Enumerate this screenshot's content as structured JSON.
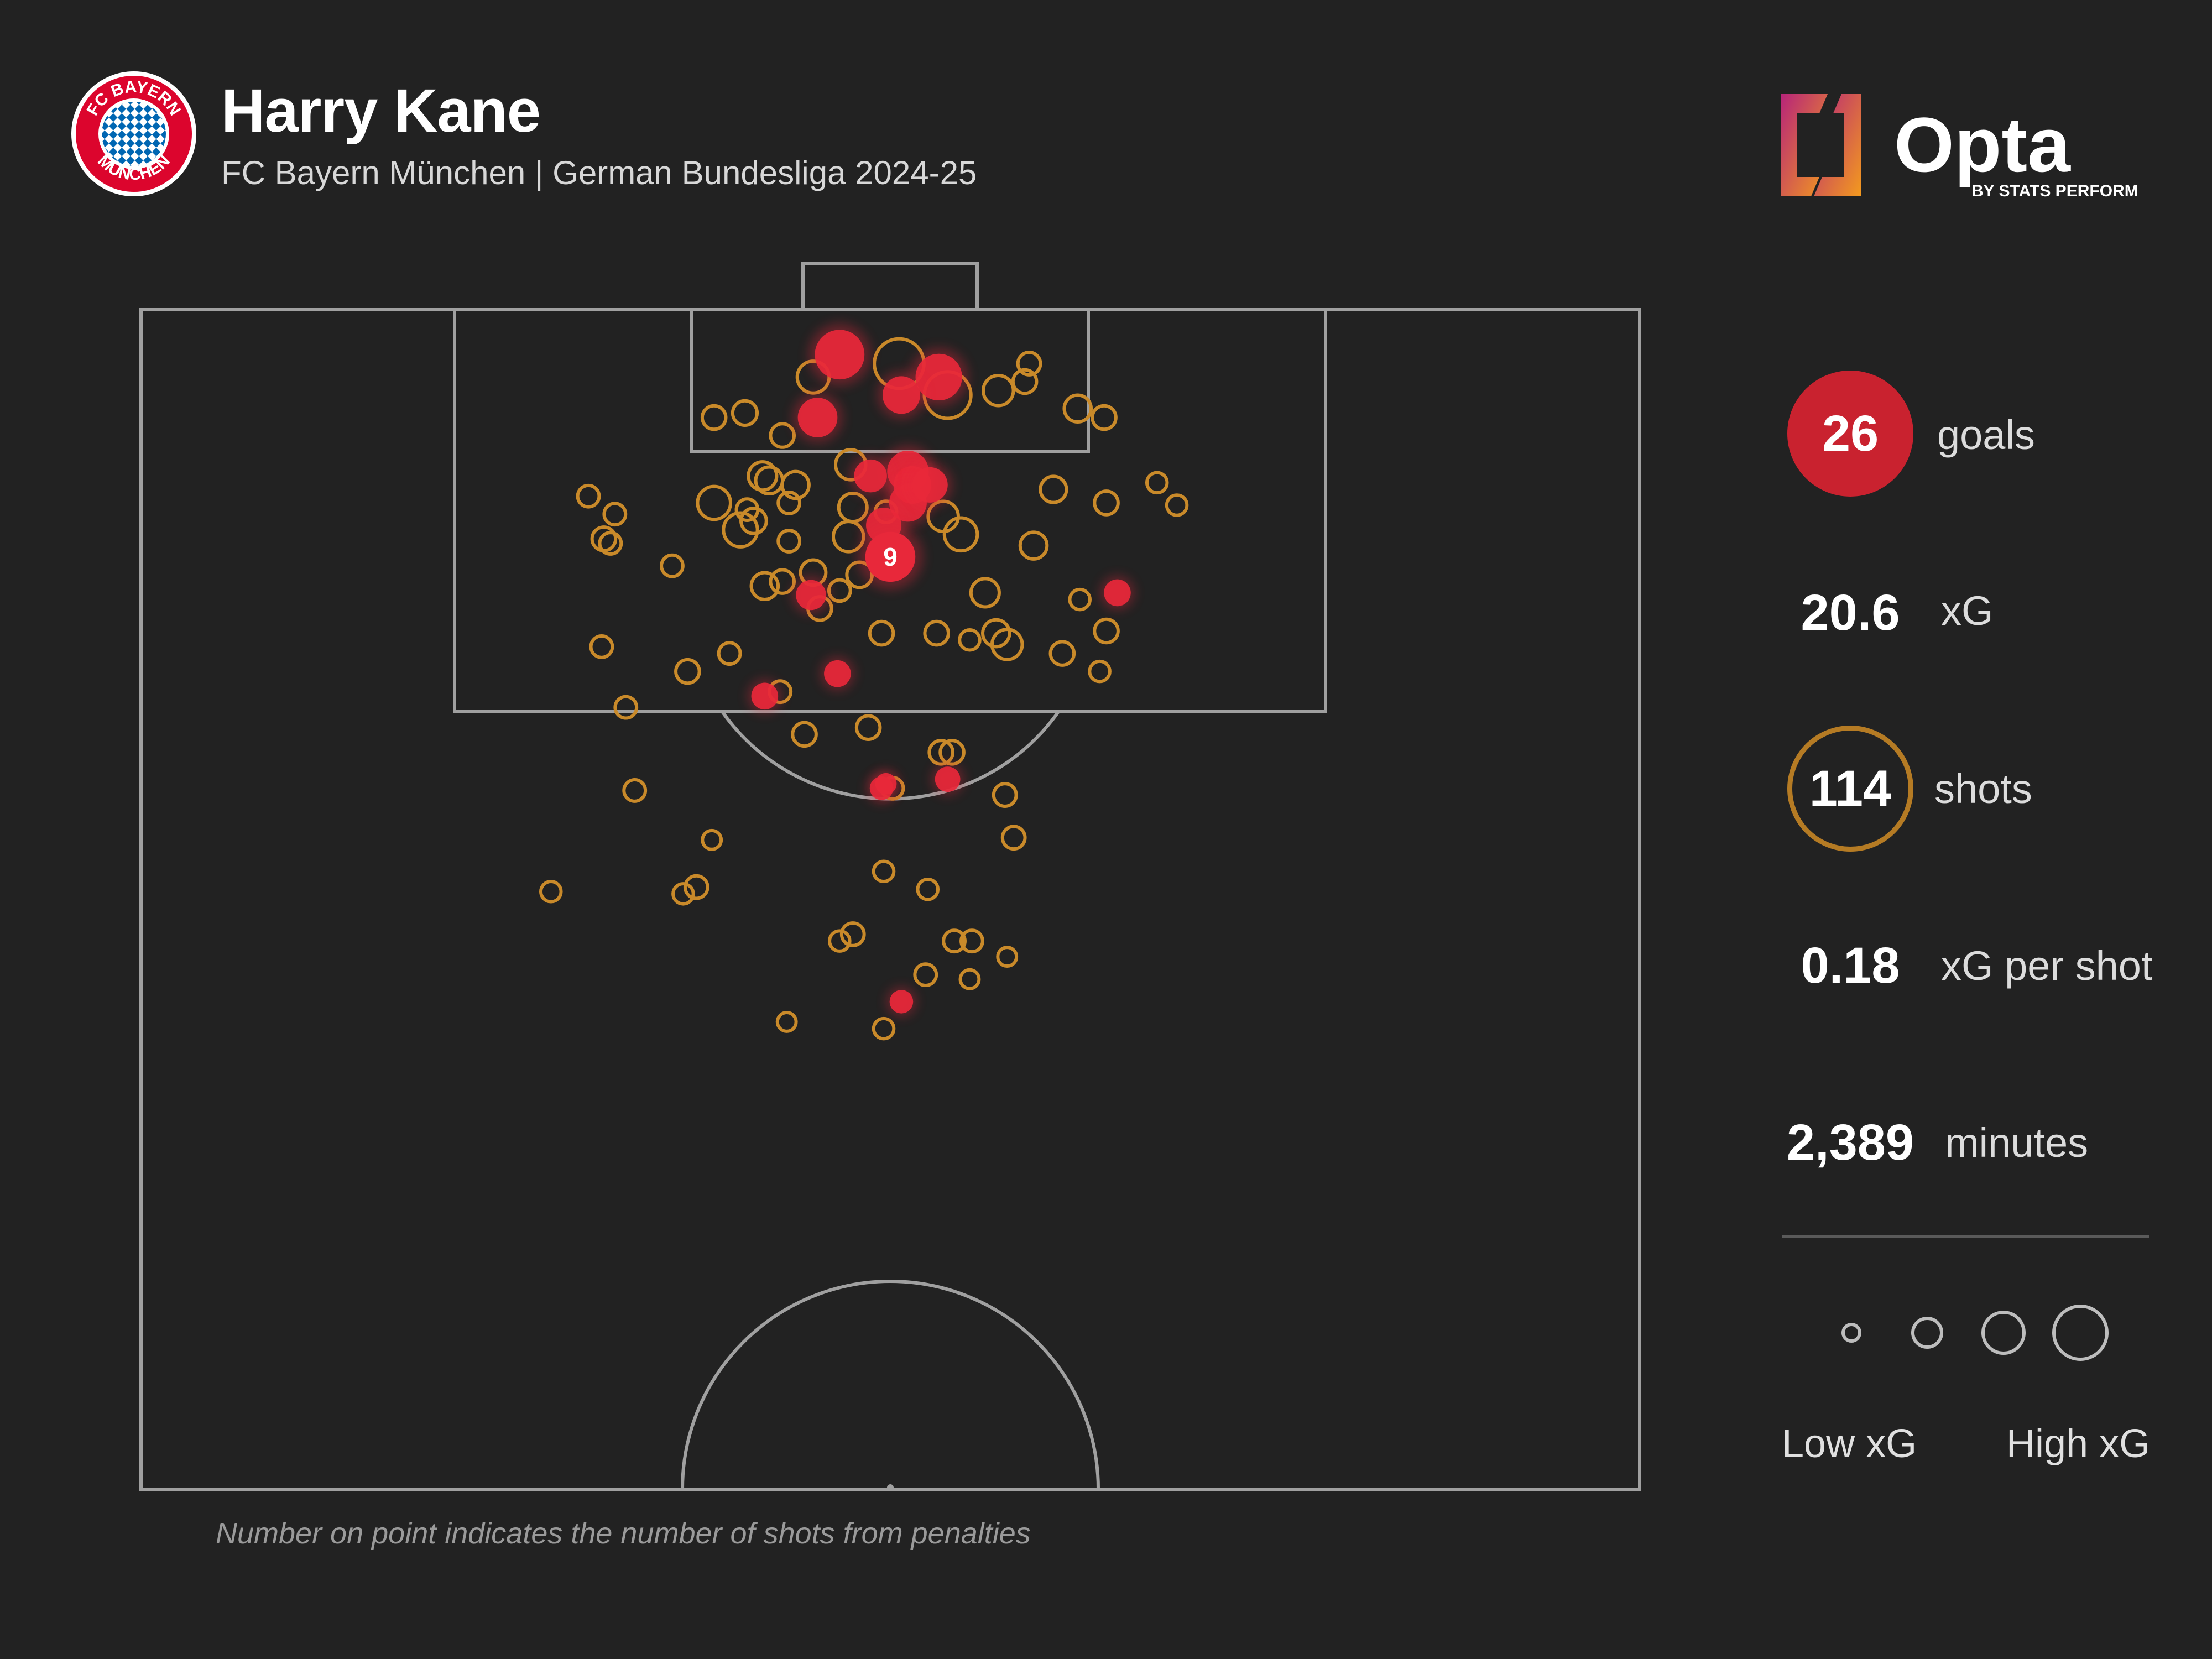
{
  "header": {
    "player_name": "Harry Kane",
    "subtitle": "FC Bayern München | German Bundesliga 2024-25"
  },
  "badge": {
    "text_top": "FC BAYERN",
    "text_bottom": "MÜNCHEN",
    "colors": {
      "red": "#dc052d",
      "blue": "#0066b2",
      "white": "#ffffff"
    }
  },
  "logo": {
    "brand": "Opta",
    "tagline": "BY STATS PERFORM",
    "colors": {
      "magenta": "#b6247a",
      "orange": "#f39a1e"
    }
  },
  "stats": {
    "goals": {
      "value": "26",
      "label": "goals"
    },
    "xg": {
      "value": "20.6",
      "label": "xG"
    },
    "shots": {
      "value": "114",
      "label": "shots"
    },
    "xg_per_shot": {
      "value": "0.18",
      "label": "xG per shot"
    },
    "minutes": {
      "value": "2,389",
      "label": "minutes"
    }
  },
  "legend": {
    "low": "Low xG",
    "high": "High xG",
    "sizes": [
      0.05,
      0.15,
      0.3,
      0.5
    ]
  },
  "footnote": "Number on point indicates the number of shots from penalties",
  "colors": {
    "background": "#222222",
    "pitch_lines": "#a0a0a0",
    "goal": "#e8283a",
    "miss": "#c98a2a"
  },
  "chart_data": {
    "type": "scatter",
    "coordinate_system": "metres; x = across pitch from left touchline (0-68), y = distance from goal line (0-52.5)",
    "penalty_marker": {
      "x": 34,
      "y": 11,
      "xg": 0.76,
      "goal": true,
      "label": "9"
    },
    "shots": [
      {
        "x": 31.7,
        "y": 2.0,
        "xg": 0.65,
        "goal": true
      },
      {
        "x": 34.4,
        "y": 2.4,
        "xg": 0.65,
        "goal": false
      },
      {
        "x": 36.2,
        "y": 3.0,
        "xg": 0.55,
        "goal": true
      },
      {
        "x": 36.6,
        "y": 3.8,
        "xg": 0.55,
        "goal": false
      },
      {
        "x": 34.5,
        "y": 3.8,
        "xg": 0.3,
        "goal": true
      },
      {
        "x": 30.7,
        "y": 4.8,
        "xg": 0.35,
        "goal": true
      },
      {
        "x": 30.5,
        "y": 3.0,
        "xg": 0.18,
        "goal": false
      },
      {
        "x": 38.9,
        "y": 3.6,
        "xg": 0.15,
        "goal": false
      },
      {
        "x": 40.1,
        "y": 3.2,
        "xg": 0.06,
        "goal": false
      },
      {
        "x": 40.3,
        "y": 2.4,
        "xg": 0.05,
        "goal": false
      },
      {
        "x": 27.4,
        "y": 4.6,
        "xg": 0.07,
        "goal": false
      },
      {
        "x": 26.0,
        "y": 4.8,
        "xg": 0.06,
        "goal": false
      },
      {
        "x": 29.1,
        "y": 5.6,
        "xg": 0.06,
        "goal": false
      },
      {
        "x": 42.5,
        "y": 4.4,
        "xg": 0.1,
        "goal": false
      },
      {
        "x": 43.7,
        "y": 4.8,
        "xg": 0.06,
        "goal": false
      },
      {
        "x": 34.8,
        "y": 7.2,
        "xg": 0.4,
        "goal": true
      },
      {
        "x": 35.0,
        "y": 7.8,
        "xg": 0.3,
        "goal": true
      },
      {
        "x": 34.8,
        "y": 8.6,
        "xg": 0.3,
        "goal": true
      },
      {
        "x": 35.8,
        "y": 7.8,
        "xg": 0.25,
        "goal": true
      },
      {
        "x": 33.1,
        "y": 7.4,
        "xg": 0.2,
        "goal": true
      },
      {
        "x": 33.7,
        "y": 9.6,
        "xg": 0.25,
        "goal": true
      },
      {
        "x": 32.2,
        "y": 6.9,
        "xg": 0.15,
        "goal": false
      },
      {
        "x": 33.8,
        "y": 9.0,
        "xg": 0.04,
        "goal": false
      },
      {
        "x": 28.2,
        "y": 7.4,
        "xg": 0.12,
        "goal": false
      },
      {
        "x": 28.5,
        "y": 7.6,
        "xg": 0.1,
        "goal": false
      },
      {
        "x": 29.7,
        "y": 7.8,
        "xg": 0.1,
        "goal": false
      },
      {
        "x": 29.4,
        "y": 8.6,
        "xg": 0.04,
        "goal": false
      },
      {
        "x": 32.3,
        "y": 8.8,
        "xg": 0.12,
        "goal": false
      },
      {
        "x": 26.0,
        "y": 8.6,
        "xg": 0.2,
        "goal": false
      },
      {
        "x": 27.5,
        "y": 8.9,
        "xg": 0.04,
        "goal": false
      },
      {
        "x": 27.2,
        "y": 9.8,
        "xg": 0.22,
        "goal": false
      },
      {
        "x": 27.8,
        "y": 9.4,
        "xg": 0.08,
        "goal": false
      },
      {
        "x": 29.4,
        "y": 10.3,
        "xg": 0.04,
        "goal": false
      },
      {
        "x": 32.1,
        "y": 10.1,
        "xg": 0.15,
        "goal": false
      },
      {
        "x": 36.4,
        "y": 9.2,
        "xg": 0.15,
        "goal": false
      },
      {
        "x": 37.2,
        "y": 10.0,
        "xg": 0.2,
        "goal": false
      },
      {
        "x": 41.4,
        "y": 8.0,
        "xg": 0.09,
        "goal": false
      },
      {
        "x": 43.8,
        "y": 8.6,
        "xg": 0.06,
        "goal": false
      },
      {
        "x": 40.5,
        "y": 10.5,
        "xg": 0.1,
        "goal": false
      },
      {
        "x": 20.3,
        "y": 8.3,
        "xg": 0.04,
        "goal": false
      },
      {
        "x": 21.5,
        "y": 9.1,
        "xg": 0.04,
        "goal": false
      },
      {
        "x": 21.0,
        "y": 10.2,
        "xg": 0.06,
        "goal": false
      },
      {
        "x": 21.3,
        "y": 10.4,
        "xg": 0.04,
        "goal": false
      },
      {
        "x": 46.1,
        "y": 7.7,
        "xg": 0.03,
        "goal": false
      },
      {
        "x": 47.0,
        "y": 8.7,
        "xg": 0.03,
        "goal": false
      },
      {
        "x": 24.1,
        "y": 11.4,
        "xg": 0.04,
        "goal": false
      },
      {
        "x": 28.3,
        "y": 12.3,
        "xg": 0.1,
        "goal": false
      },
      {
        "x": 29.1,
        "y": 12.1,
        "xg": 0.06,
        "goal": false
      },
      {
        "x": 30.5,
        "y": 11.7,
        "xg": 0.08,
        "goal": false
      },
      {
        "x": 31.7,
        "y": 12.5,
        "xg": 0.04,
        "goal": false
      },
      {
        "x": 32.6,
        "y": 11.8,
        "xg": 0.08,
        "goal": false
      },
      {
        "x": 30.4,
        "y": 12.7,
        "xg": 0.15,
        "goal": true
      },
      {
        "x": 30.8,
        "y": 13.3,
        "xg": 0.06,
        "goal": false
      },
      {
        "x": 38.3,
        "y": 12.6,
        "xg": 0.12,
        "goal": false
      },
      {
        "x": 44.3,
        "y": 12.6,
        "xg": 0.1,
        "goal": true
      },
      {
        "x": 42.6,
        "y": 12.9,
        "xg": 0.03,
        "goal": false
      },
      {
        "x": 33.6,
        "y": 14.4,
        "xg": 0.06,
        "goal": false
      },
      {
        "x": 36.1,
        "y": 14.4,
        "xg": 0.06,
        "goal": false
      },
      {
        "x": 37.6,
        "y": 14.7,
        "xg": 0.03,
        "goal": false
      },
      {
        "x": 38.8,
        "y": 14.4,
        "xg": 0.1,
        "goal": false
      },
      {
        "x": 39.3,
        "y": 14.9,
        "xg": 0.15,
        "goal": false
      },
      {
        "x": 43.8,
        "y": 14.3,
        "xg": 0.06,
        "goal": false
      },
      {
        "x": 41.8,
        "y": 15.3,
        "xg": 0.06,
        "goal": false
      },
      {
        "x": 43.5,
        "y": 16.1,
        "xg": 0.03,
        "goal": false
      },
      {
        "x": 20.9,
        "y": 15.0,
        "xg": 0.04,
        "goal": false
      },
      {
        "x": 24.8,
        "y": 16.1,
        "xg": 0.06,
        "goal": false
      },
      {
        "x": 26.7,
        "y": 15.3,
        "xg": 0.04,
        "goal": false
      },
      {
        "x": 31.6,
        "y": 16.2,
        "xg": 0.1,
        "goal": true
      },
      {
        "x": 28.3,
        "y": 17.2,
        "xg": 0.1,
        "goal": true
      },
      {
        "x": 29.0,
        "y": 17.0,
        "xg": 0.04,
        "goal": false
      },
      {
        "x": 22.0,
        "y": 17.7,
        "xg": 0.04,
        "goal": false
      },
      {
        "x": 33.0,
        "y": 18.6,
        "xg": 0.06,
        "goal": false
      },
      {
        "x": 30.1,
        "y": 18.9,
        "xg": 0.06,
        "goal": false
      },
      {
        "x": 36.3,
        "y": 19.7,
        "xg": 0.06,
        "goal": false
      },
      {
        "x": 36.8,
        "y": 19.7,
        "xg": 0.06,
        "goal": false
      },
      {
        "x": 33.6,
        "y": 21.3,
        "xg": 0.06,
        "goal": true
      },
      {
        "x": 34.1,
        "y": 21.3,
        "xg": 0.04,
        "goal": false
      },
      {
        "x": 33.8,
        "y": 21.1,
        "xg": 0.04,
        "goal": true
      },
      {
        "x": 36.6,
        "y": 20.9,
        "xg": 0.08,
        "goal": true
      },
      {
        "x": 39.2,
        "y": 21.6,
        "xg": 0.05,
        "goal": false
      },
      {
        "x": 22.4,
        "y": 21.4,
        "xg": 0.04,
        "goal": false
      },
      {
        "x": 25.9,
        "y": 23.6,
        "xg": 0.02,
        "goal": false
      },
      {
        "x": 39.6,
        "y": 23.5,
        "xg": 0.05,
        "goal": false
      },
      {
        "x": 33.7,
        "y": 25.0,
        "xg": 0.03,
        "goal": false
      },
      {
        "x": 35.7,
        "y": 25.8,
        "xg": 0.03,
        "goal": false
      },
      {
        "x": 18.6,
        "y": 25.9,
        "xg": 0.03,
        "goal": false
      },
      {
        "x": 24.6,
        "y": 26.0,
        "xg": 0.03,
        "goal": false
      },
      {
        "x": 25.2,
        "y": 25.7,
        "xg": 0.05,
        "goal": false
      },
      {
        "x": 32.3,
        "y": 27.8,
        "xg": 0.05,
        "goal": false
      },
      {
        "x": 31.7,
        "y": 28.1,
        "xg": 0.03,
        "goal": false
      },
      {
        "x": 36.9,
        "y": 28.1,
        "xg": 0.04,
        "goal": false
      },
      {
        "x": 37.7,
        "y": 28.1,
        "xg": 0.04,
        "goal": false
      },
      {
        "x": 39.3,
        "y": 28.8,
        "xg": 0.02,
        "goal": false
      },
      {
        "x": 35.6,
        "y": 29.6,
        "xg": 0.04,
        "goal": false
      },
      {
        "x": 37.6,
        "y": 29.8,
        "xg": 0.02,
        "goal": false
      },
      {
        "x": 34.5,
        "y": 30.8,
        "xg": 0.06,
        "goal": true
      },
      {
        "x": 29.3,
        "y": 31.7,
        "xg": 0.02,
        "goal": false
      },
      {
        "x": 33.7,
        "y": 32.0,
        "xg": 0.03,
        "goal": false
      }
    ]
  }
}
